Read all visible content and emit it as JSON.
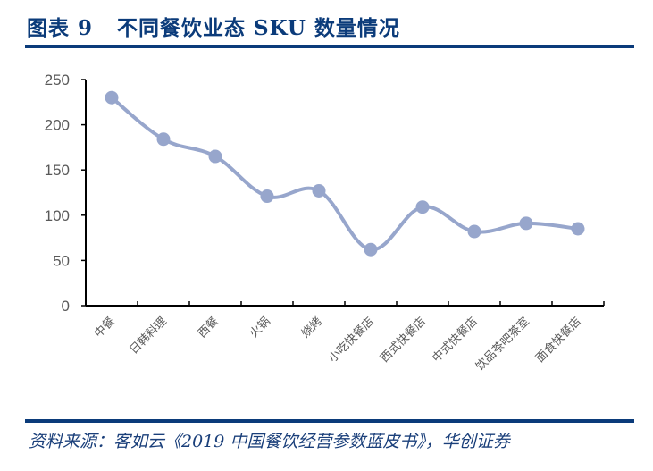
{
  "header": {
    "title": "图表 9   不同餐饮业态 SKU 数量情况"
  },
  "footer": {
    "source": "资料来源：客如云《2019 中国餐饮经营参数蓝皮书》，华创证券"
  },
  "colors": {
    "title": "#0b3b7a",
    "rule": "#0b3b7a",
    "series": "#97a6cc",
    "axis": "#000000",
    "tick_label": "#595959"
  },
  "chart_data": {
    "type": "line",
    "title": "不同餐饮业态 SKU 数量情况",
    "xlabel": "",
    "ylabel": "",
    "categories": [
      "中餐",
      "日韩料理",
      "西餐",
      "火锅",
      "烧烤",
      "小吃快餐店",
      "西式快餐店",
      "中式快餐店",
      "饮品茶吧茶室",
      "面食快餐店"
    ],
    "series": [
      {
        "name": "SKU数量",
        "values": [
          230,
          184,
          165,
          121,
          127,
          62,
          109,
          82,
          91,
          85
        ]
      }
    ],
    "ylim": [
      0,
      250
    ],
    "yticks": [
      0,
      50,
      100,
      150,
      200,
      250
    ],
    "grid": false,
    "legend": "none",
    "smooth": true,
    "markers": "circle"
  }
}
